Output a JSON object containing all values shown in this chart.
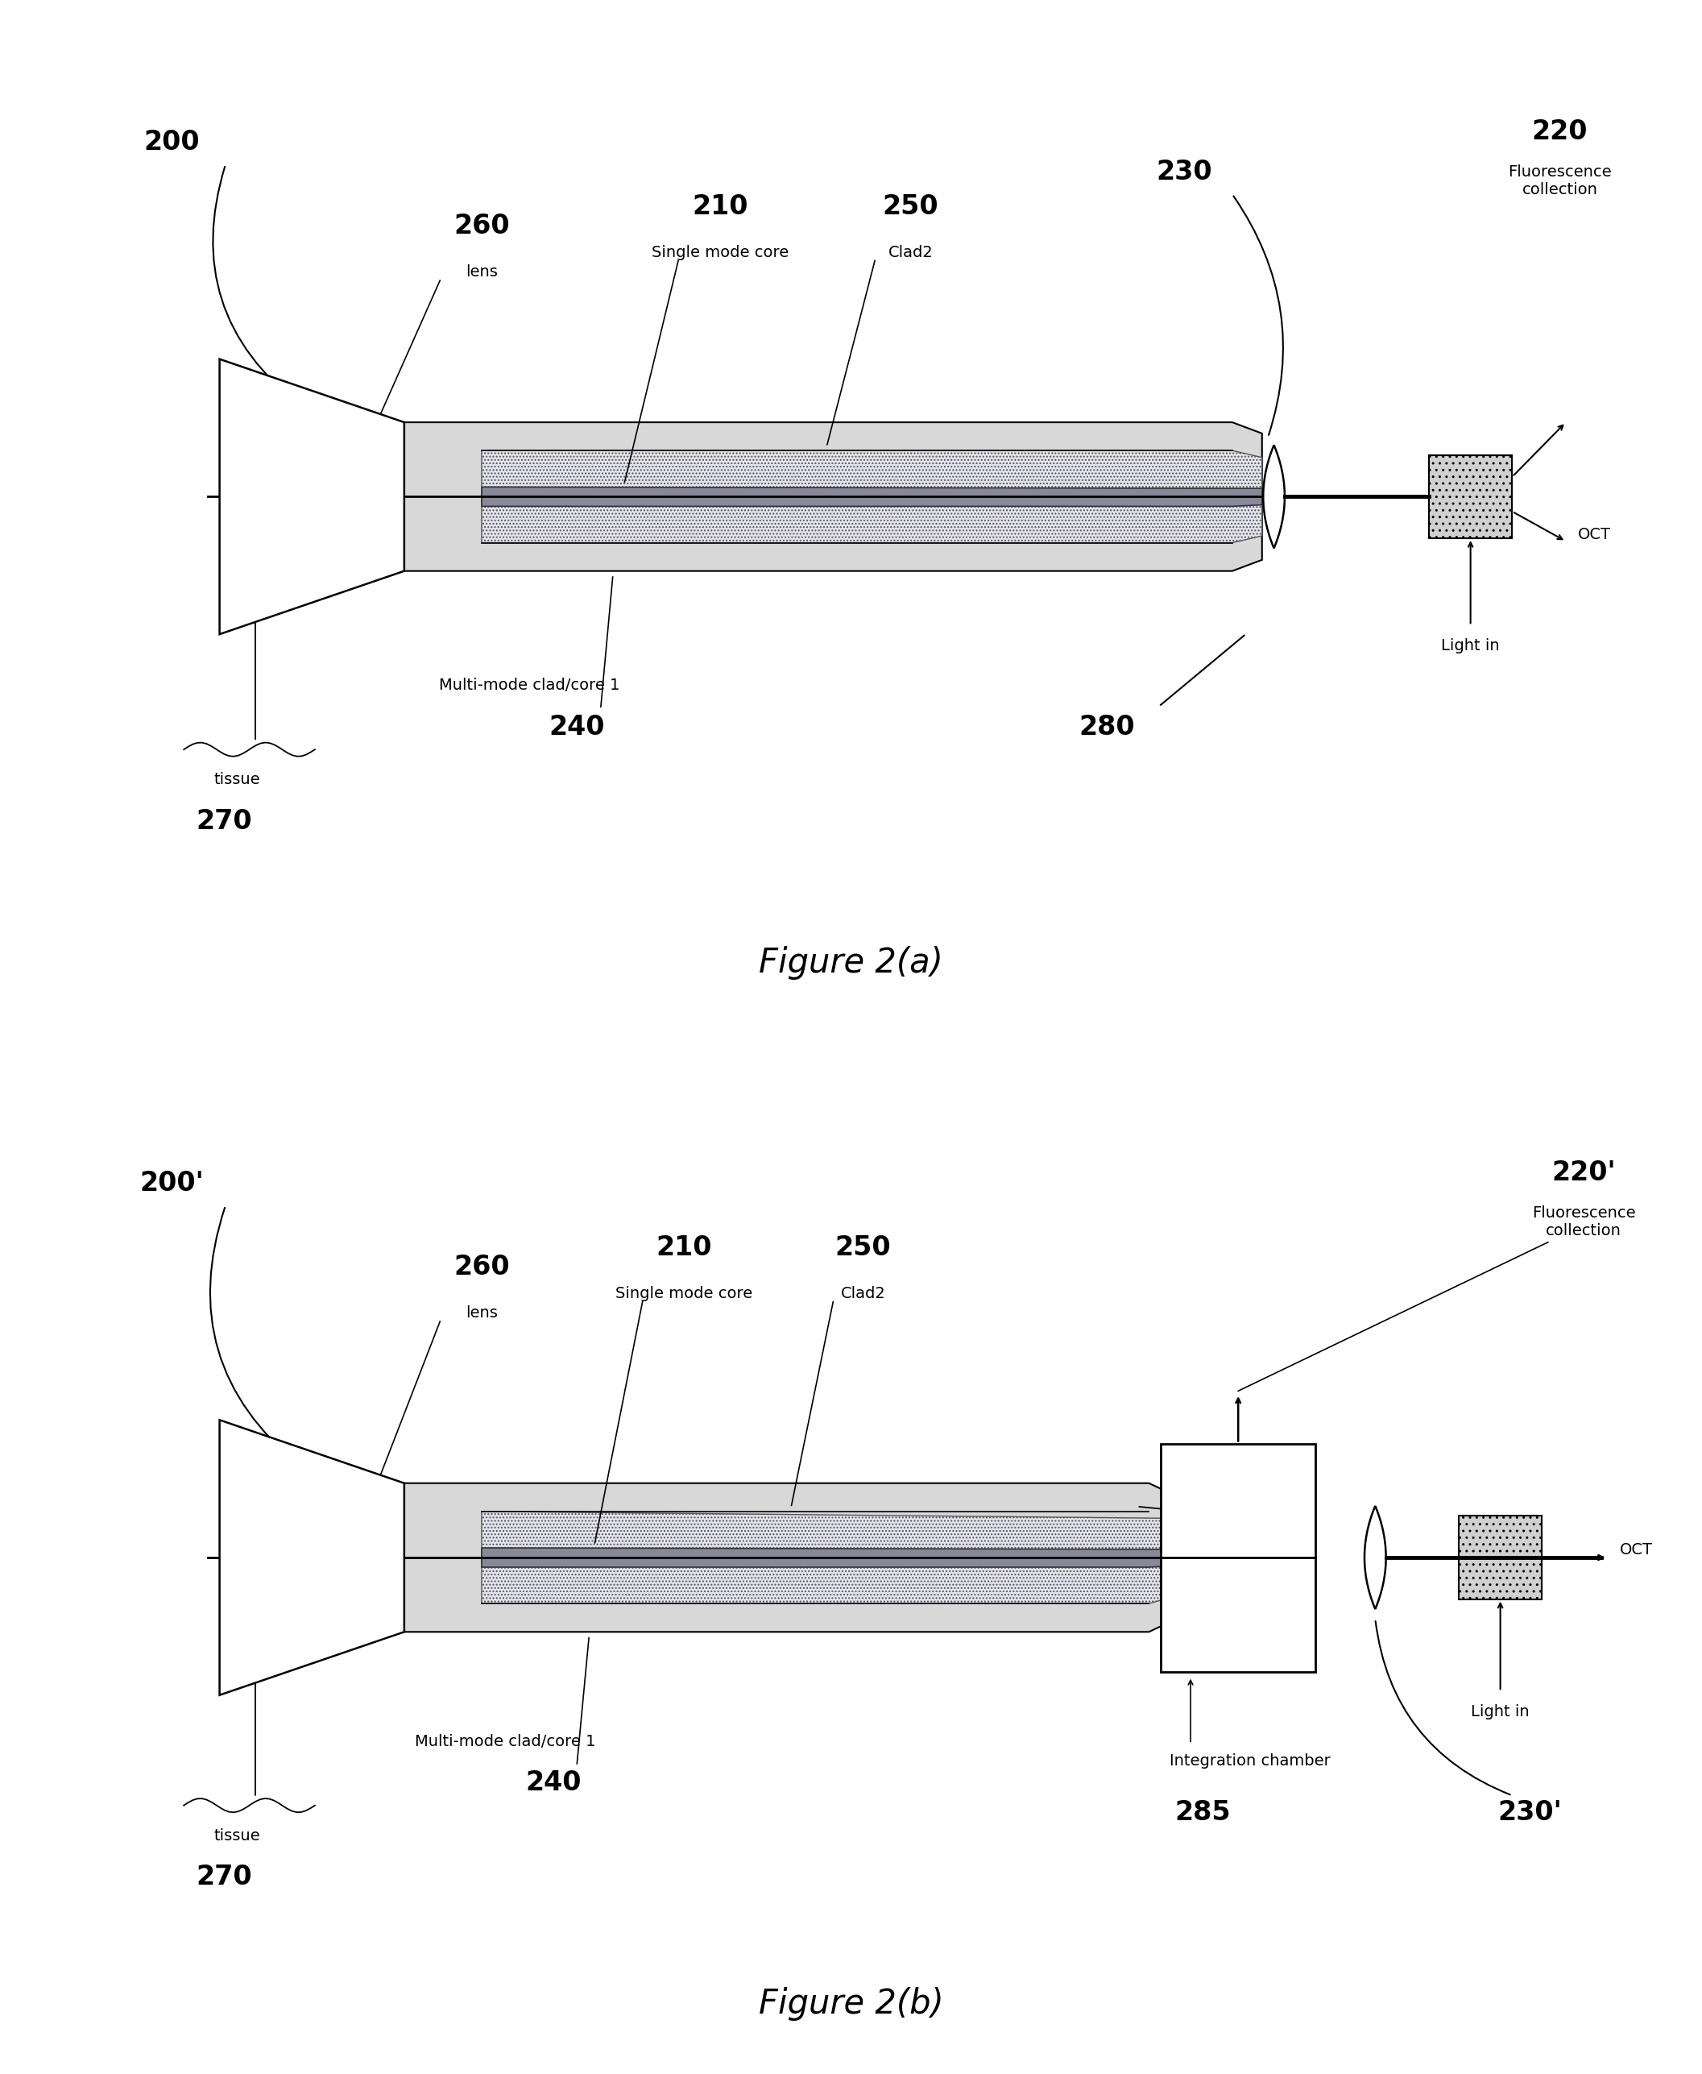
{
  "fig_width": 21.13,
  "fig_height": 25.74,
  "bg_color": "#ffffff",
  "fig_a_title": "Figure 2(a)",
  "fig_b_title": "Figure 2(b)",
  "lbl_200": "200",
  "lbl_200p": "200'",
  "lbl_210": "210",
  "lbl_220": "220",
  "lbl_220p": "220'",
  "lbl_230": "230",
  "lbl_230p": "230'",
  "lbl_240": "240",
  "lbl_250": "250",
  "lbl_260": "260",
  "lbl_270": "270",
  "lbl_280": "280",
  "lbl_285": "285",
  "txt_lens": "lens",
  "txt_single_mode": "Single mode core",
  "txt_clad2": "Clad2",
  "txt_multimode": "Multi-mode clad/core 1",
  "txt_tissue": "tissue",
  "txt_fluorescence": "Fluorescence\ncollection",
  "txt_oct": "OCT",
  "txt_lightin": "Light in",
  "txt_integration": "Integration chamber",
  "fs_num": 24,
  "fs_txt": 14,
  "fs_title": 30
}
